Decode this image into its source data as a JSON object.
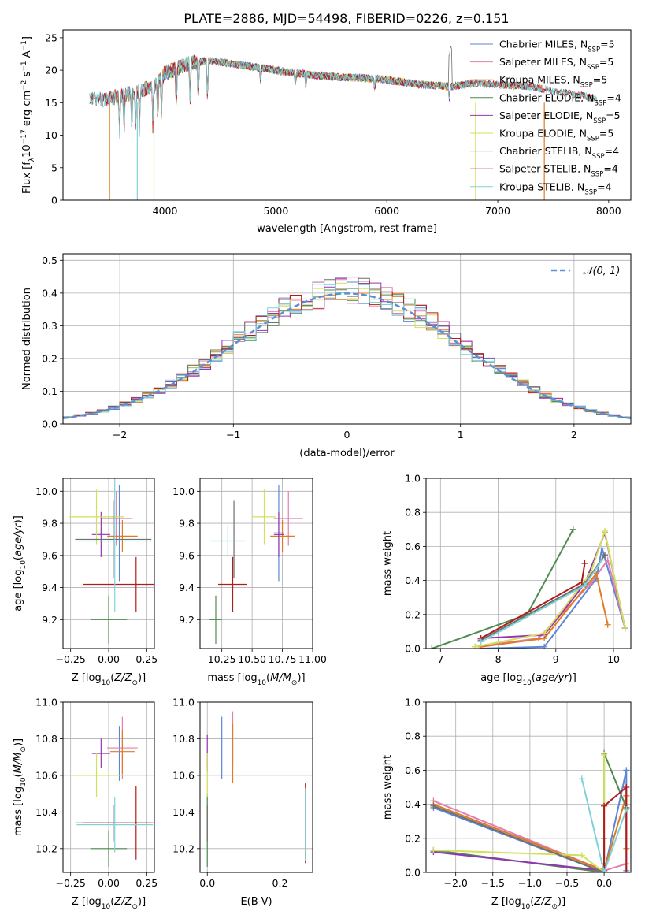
{
  "figure": {
    "title": "PLATE=2886, MJD=54498, FIBERID=0226, z=0.151"
  },
  "colors": {
    "Chabrier MILES": "#5b86d6",
    "Salpeter MILES": "#e27fb0",
    "Kroupa MILES": "#e07b24",
    "Chabrier ELODIE": "#4f8a4f",
    "Salpeter ELODIE": "#9434b4",
    "Kroupa ELODIE": "#d2e05a",
    "Chabrier STELIB": "#6f6f6f",
    "Salpeter STELIB": "#b01c1c",
    "Kroupa STELIB": "#7fd3d8"
  },
  "chart_data": [
    {
      "id": "spectrum",
      "type": "line",
      "xlabel": "wavelength [Angstrom, rest frame]",
      "ylabel": "Flux [f_λ 10^-17 erg cm^-2 s^-1 A^-1]",
      "xlim": [
        3080,
        8200
      ],
      "ylim": [
        0,
        26.2
      ],
      "xticks": [
        4000,
        5000,
        6000,
        7000,
        8000
      ],
      "yticks": [
        0,
        5,
        10,
        15,
        20,
        25
      ],
      "legend": "top-right",
      "grid": false,
      "series": [
        {
          "name": "Chabrier MILES",
          "nssp": "5"
        },
        {
          "name": "Salpeter MILES",
          "nssp": "5"
        },
        {
          "name": "Kroupa MILES",
          "nssp": "5"
        },
        {
          "name": "Chabrier ELODIE",
          "nssp": "4"
        },
        {
          "name": "Salpeter ELODIE",
          "nssp": "5"
        },
        {
          "name": "Kroupa ELODIE",
          "nssp": "5"
        },
        {
          "name": "Chabrier STELIB",
          "nssp": "4"
        },
        {
          "name": "Salpeter STELIB",
          "nssp": "4"
        },
        {
          "name": "Kroupa STELIB",
          "nssp": "4"
        }
      ],
      "continuum": [
        [
          3300,
          15.3
        ],
        [
          3500,
          15.6
        ],
        [
          3700,
          16.5
        ],
        [
          3900,
          17.5
        ],
        [
          4000,
          19.5
        ],
        [
          4200,
          21
        ],
        [
          4400,
          21.5
        ],
        [
          4600,
          21
        ],
        [
          4800,
          20.5
        ],
        [
          5000,
          20
        ],
        [
          5200,
          19.5
        ],
        [
          5500,
          19
        ],
        [
          5800,
          18.8
        ],
        [
          6000,
          18.5
        ],
        [
          6300,
          17.8
        ],
        [
          6600,
          17.5
        ],
        [
          6800,
          18
        ],
        [
          7000,
          17.8
        ],
        [
          7300,
          17.5
        ],
        [
          7600,
          16.5
        ],
        [
          7800,
          16
        ],
        [
          7950,
          15
        ]
      ],
      "absorption_lines": [
        3590,
        3630,
        3700,
        3735,
        3770,
        3890,
        3934,
        3969,
        4102,
        4226,
        4300,
        4383,
        4861,
        5175,
        5270,
        5890,
        6563
      ]
    },
    {
      "id": "residuals",
      "type": "bar",
      "xlabel": "(data-model)/error",
      "ylabel": "Normed distribution",
      "xlim": [
        -2.5,
        2.5
      ],
      "ylim": [
        0,
        0.52
      ],
      "xticks": [
        -2,
        -1,
        0,
        1,
        2
      ],
      "yticks": [
        0.0,
        0.1,
        0.2,
        0.3,
        0.4,
        0.5
      ],
      "grid": true,
      "legend": "top-right",
      "reference_curve": "N(0,1)",
      "bins": {
        "start": -2.5,
        "width": 0.1,
        "count": 50
      }
    },
    {
      "id": "age_vs_Z",
      "type": "scatter",
      "xlabel": "Z [log10(Z/Z_sun)]",
      "ylabel": "age [log10(age/yr)]",
      "xlim": [
        -0.3,
        0.3
      ],
      "ylim": [
        9.02,
        10.08
      ],
      "xticks": [
        -0.25,
        0.0,
        0.25
      ],
      "yticks": [
        9.2,
        9.4,
        9.6,
        9.8,
        10.0
      ],
      "grid": true,
      "points": [
        {
          "series": "Chabrier MILES",
          "x": 0.07,
          "xerr": 0.0,
          "y": 9.74,
          "yerr": 0.3
        },
        {
          "series": "Salpeter MILES",
          "x": 0.05,
          "xerr": 0.1,
          "y": 9.83,
          "yerr": 0.17
        },
        {
          "series": "Kroupa MILES",
          "x": 0.09,
          "xerr": 0.1,
          "y": 9.72,
          "yerr": 0.1
        },
        {
          "series": "Chabrier ELODIE",
          "x": 0.0,
          "xerr": 0.12,
          "y": 9.2,
          "yerr": 0.15
        },
        {
          "series": "Salpeter ELODIE",
          "x": -0.05,
          "xerr": 0.06,
          "y": 9.73,
          "yerr": 0.14
        },
        {
          "series": "Kroupa ELODIE",
          "x": -0.08,
          "xerr": 0.18,
          "y": 9.84,
          "yerr": 0.17
        },
        {
          "series": "Chabrier STELIB",
          "x": 0.03,
          "xerr": 0.25,
          "y": 9.7,
          "yerr": 0.24
        },
        {
          "series": "Salpeter STELIB",
          "x": 0.18,
          "xerr": 0.35,
          "y": 9.42,
          "yerr": 0.17
        },
        {
          "series": "Kroupa STELIB",
          "x": 0.04,
          "xerr": 0.25,
          "y": 9.69,
          "yerr": 0.44
        }
      ]
    },
    {
      "id": "age_vs_mass",
      "type": "scatter",
      "xlabel": "mass [log10(M/M_sun)]",
      "ylabel": "",
      "xlim": [
        10.07,
        11.0
      ],
      "ylim": [
        9.02,
        10.08
      ],
      "xticks": [
        10.25,
        10.5,
        10.75,
        11.0
      ],
      "xticklabels": [
        "10.25",
        "10.50",
        "10.75",
        "11.00"
      ],
      "yticks": [
        9.2,
        9.4,
        9.6,
        9.8,
        10.0
      ],
      "grid": true,
      "points": [
        {
          "series": "Chabrier MILES",
          "x": 10.72,
          "xerr": 0.04,
          "y": 9.74,
          "yerr": 0.3
        },
        {
          "series": "Salpeter MILES",
          "x": 10.8,
          "xerr": 0.12,
          "y": 9.83,
          "yerr": 0.17
        },
        {
          "series": "Kroupa MILES",
          "x": 10.75,
          "xerr": 0.1,
          "y": 9.72,
          "yerr": 0.1
        },
        {
          "series": "Chabrier ELODIE",
          "x": 10.2,
          "xerr": 0.05,
          "y": 9.2,
          "yerr": 0.15
        },
        {
          "series": "Salpeter ELODIE",
          "x": 10.72,
          "xerr": 0.04,
          "y": 9.73,
          "yerr": 0.14
        },
        {
          "series": "Kroupa ELODIE",
          "x": 10.6,
          "xerr": 0.1,
          "y": 9.84,
          "yerr": 0.17
        },
        {
          "series": "Chabrier STELIB",
          "x": 10.35,
          "xerr": 0.0,
          "y": 9.7,
          "yerr": 0.24
        },
        {
          "series": "Salpeter STELIB",
          "x": 10.34,
          "xerr": 0.12,
          "y": 9.42,
          "yerr": 0.17
        },
        {
          "series": "Kroupa STELIB",
          "x": 10.3,
          "xerr": 0.14,
          "y": 9.69,
          "yerr": 0.1
        }
      ]
    },
    {
      "id": "massweight_vs_age",
      "type": "line",
      "xlabel": "age [log10(age/yr)]",
      "ylabel": "mass weight",
      "xlim": [
        6.75,
        10.3
      ],
      "ylim": [
        0,
        1.0
      ],
      "xticks": [
        7,
        8,
        9,
        10
      ],
      "yticks": [
        0.0,
        0.2,
        0.4,
        0.6,
        0.8,
        1.0
      ],
      "grid": true,
      "series": [
        {
          "name": "Chabrier MILES",
          "points": [
            [
              7.7,
              0.0
            ],
            [
              8.8,
              0.01
            ],
            [
              9.7,
              0.41
            ],
            [
              9.8,
              0.59
            ],
            [
              10.2,
              0.12
            ]
          ]
        },
        {
          "name": "Salpeter MILES",
          "points": [
            [
              7.6,
              0.01
            ],
            [
              8.7,
              0.06
            ],
            [
              9.6,
              0.38
            ],
            [
              9.9,
              0.52
            ],
            [
              10.2,
              0.12
            ]
          ]
        },
        {
          "name": "Kroupa MILES",
          "points": [
            [
              7.7,
              0.01
            ],
            [
              8.8,
              0.06
            ],
            [
              9.7,
              0.44
            ],
            [
              9.9,
              0.14
            ]
          ]
        },
        {
          "name": "Chabrier ELODIE",
          "points": [
            [
              6.85,
              0.0
            ],
            [
              8.5,
              0.2
            ],
            [
              9.3,
              0.7
            ]
          ]
        },
        {
          "name": "Salpeter ELODIE",
          "points": [
            [
              7.7,
              0.06
            ],
            [
              8.8,
              0.08
            ],
            [
              9.5,
              0.38
            ],
            [
              9.85,
              0.68
            ],
            [
              10.2,
              0.12
            ]
          ]
        },
        {
          "name": "Kroupa ELODIE",
          "points": [
            [
              7.6,
              0.01
            ],
            [
              8.8,
              0.09
            ],
            [
              9.6,
              0.44
            ],
            [
              9.85,
              0.69
            ],
            [
              10.2,
              0.12
            ]
          ]
        },
        {
          "name": "Chabrier STELIB",
          "points": [
            [
              7.7,
              0.05
            ],
            [
              9.5,
              0.38
            ],
            [
              9.85,
              0.55
            ]
          ]
        },
        {
          "name": "Salpeter STELIB",
          "points": [
            [
              7.7,
              0.06
            ],
            [
              9.45,
              0.39
            ],
            [
              9.5,
              0.5
            ]
          ]
        },
        {
          "name": "Kroupa STELIB",
          "points": [
            [
              7.7,
              0.04
            ],
            [
              9.5,
              0.37
            ],
            [
              9.8,
              0.52
            ]
          ]
        }
      ]
    },
    {
      "id": "mass_vs_Z",
      "type": "scatter",
      "xlabel": "Z [log10(Z/Z_sun)]",
      "ylabel": "mass [log10(M/M_sun)]",
      "xlim": [
        -0.3,
        0.3
      ],
      "ylim": [
        10.07,
        11.0
      ],
      "xticks": [
        -0.25,
        0.0,
        0.25
      ],
      "yticks": [
        10.2,
        10.4,
        10.6,
        10.8,
        11.0
      ],
      "grid": true,
      "points": [
        {
          "series": "Chabrier MILES",
          "x": 0.07,
          "xerr": 0.0,
          "y": 10.72,
          "yerr": 0.15
        },
        {
          "series": "Salpeter MILES",
          "x": 0.09,
          "xerr": 0.1,
          "y": 10.75,
          "yerr": 0.17
        },
        {
          "series": "Kroupa MILES",
          "x": 0.09,
          "xerr": 0.08,
          "y": 10.73,
          "yerr": 0.12
        },
        {
          "series": "Chabrier ELODIE",
          "x": 0.0,
          "xerr": 0.12,
          "y": 10.2,
          "yerr": 0.1
        },
        {
          "series": "Salpeter ELODIE",
          "x": -0.05,
          "xerr": 0.06,
          "y": 10.72,
          "yerr": 0.08
        },
        {
          "series": "Kroupa ELODIE",
          "x": -0.08,
          "xerr": 0.18,
          "y": 10.6,
          "yerr": 0.12
        },
        {
          "series": "Chabrier STELIB",
          "x": 0.03,
          "xerr": 0.25,
          "y": 10.34,
          "yerr": 0.1
        },
        {
          "series": "Salpeter STELIB",
          "x": 0.18,
          "xerr": 0.35,
          "y": 10.34,
          "yerr": 0.2
        },
        {
          "series": "Kroupa STELIB",
          "x": 0.04,
          "xerr": 0.25,
          "y": 10.33,
          "yerr": 0.15
        }
      ]
    },
    {
      "id": "mass_vs_EBV",
      "type": "scatter",
      "xlabel": "E(B-V)",
      "ylabel": "",
      "xlim": [
        -0.02,
        0.29
      ],
      "ylim": [
        10.07,
        11.0
      ],
      "xticks": [
        0.0,
        0.2
      ],
      "yticks": [
        10.2,
        10.4,
        10.6,
        10.8,
        11.0
      ],
      "grid": true,
      "points": [
        {
          "series": "Chabrier MILES",
          "x": 0.04,
          "xerr": 0.0,
          "y": 10.75,
          "yerr": 0.17
        },
        {
          "series": "Salpeter MILES",
          "x": 0.07,
          "xerr": 0.0,
          "y": 10.8,
          "yerr": 0.15
        },
        {
          "series": "Kroupa MILES",
          "x": 0.07,
          "xerr": 0.0,
          "y": 10.72,
          "yerr": 0.16
        },
        {
          "series": "Chabrier ELODIE",
          "x": 0.0,
          "xerr": 0.0,
          "y": 10.3,
          "yerr": 0.2
        },
        {
          "series": "Salpeter ELODIE",
          "x": 0.0,
          "xerr": 0.0,
          "y": 10.72,
          "yerr": 0.1
        },
        {
          "series": "Kroupa ELODIE",
          "x": 0.0,
          "xerr": 0.0,
          "y": 10.6,
          "yerr": 0.12
        },
        {
          "series": "Chabrier STELIB",
          "x": 0.0,
          "xerr": 0.0,
          "y": 10.34,
          "yerr": 0.1
        },
        {
          "series": "Salpeter STELIB",
          "x": 0.27,
          "xerr": 0.0,
          "y": 10.34,
          "yerr": 0.22
        },
        {
          "series": "Kroupa STELIB",
          "x": 0.27,
          "xerr": 0.0,
          "y": 10.33,
          "yerr": 0.2
        }
      ]
    },
    {
      "id": "massweight_vs_Z",
      "type": "line",
      "xlabel": "Z [log10(Z/Z_sun)]",
      "ylabel": "mass weight",
      "xlim": [
        -2.4,
        0.36
      ],
      "ylim": [
        0,
        1.0
      ],
      "xticks": [
        -2.0,
        -1.5,
        -1.0,
        -0.5,
        0.0
      ],
      "xticklabels": [
        "−2.0",
        "−1.5",
        "−1.0",
        "−0.5",
        "0.0"
      ],
      "yticks": [
        0.0,
        0.2,
        0.4,
        0.6,
        0.8,
        1.0
      ],
      "grid": true,
      "series": [
        {
          "name": "Chabrier MILES",
          "points": [
            [
              -2.3,
              0.38
            ],
            [
              0.0,
              0.0
            ],
            [
              0.3,
              0.6
            ],
            [
              0.3,
              0.01
            ]
          ]
        },
        {
          "name": "Salpeter MILES",
          "points": [
            [
              -2.3,
              0.42
            ],
            [
              0.0,
              0.01
            ],
            [
              0.3,
              0.05
            ]
          ]
        },
        {
          "name": "Kroupa MILES",
          "points": [
            [
              -2.3,
              0.4
            ],
            [
              0.0,
              0.01
            ],
            [
              0.3,
              0.45
            ],
            [
              0.3,
              0.14
            ]
          ]
        },
        {
          "name": "Chabrier ELODIE",
          "points": [
            [
              -2.3,
              0.13
            ],
            [
              0.0,
              0.0
            ],
            [
              0.0,
              0.7
            ],
            [
              0.3,
              0.38
            ]
          ]
        },
        {
          "name": "Salpeter ELODIE",
          "points": [
            [
              -2.3,
              0.12
            ],
            [
              0.0,
              0.01
            ],
            [
              0.0,
              0.05
            ]
          ]
        },
        {
          "name": "Kroupa ELODIE",
          "points": [
            [
              -2.3,
              0.13
            ],
            [
              -0.3,
              0.1
            ],
            [
              0.0,
              0.0
            ],
            [
              0.0,
              0.69
            ]
          ]
        },
        {
          "name": "Chabrier STELIB",
          "points": [
            [
              -2.3,
              0.39
            ],
            [
              0.0,
              0.0
            ],
            [
              0.0,
              0.2
            ]
          ]
        },
        {
          "name": "Salpeter STELIB",
          "points": [
            [
              0.0,
              0.0
            ],
            [
              0.0,
              0.39
            ],
            [
              0.3,
              0.5
            ],
            [
              0.3,
              0.0
            ]
          ]
        },
        {
          "name": "Kroupa STELIB",
          "points": [
            [
              -0.3,
              0.55
            ],
            [
              0.0,
              0.0
            ],
            [
              0.3,
              0.37
            ]
          ]
        }
      ]
    }
  ]
}
